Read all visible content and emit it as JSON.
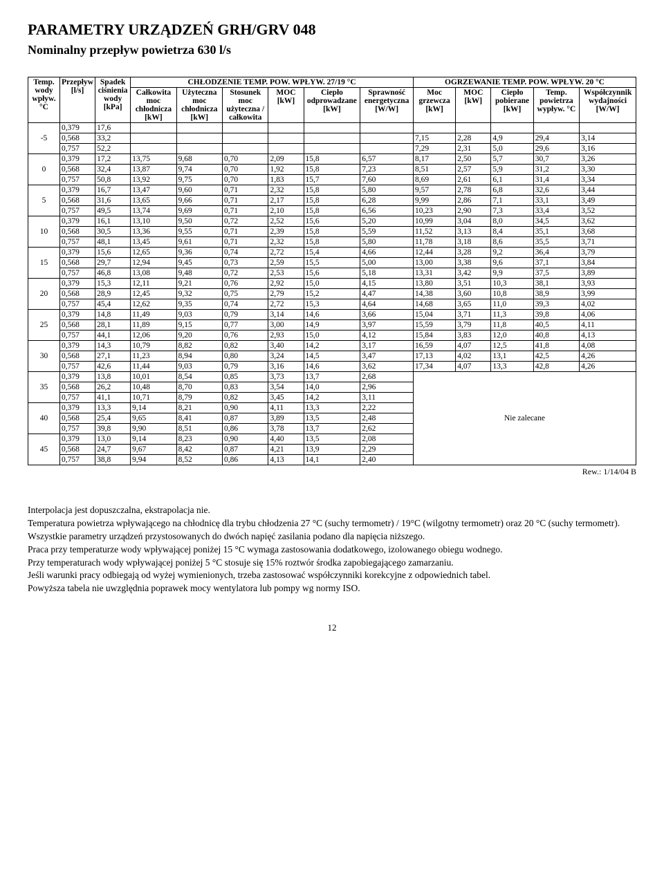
{
  "title": "PARAMETRY URZĄDZEŃ GRH/GRV 048",
  "subtitle": "Nominalny przepływ powietrza 630 l/s",
  "header": {
    "col_temp": "Temp. wody wpływ. °C",
    "col_flow": "Przepływ [l/s]",
    "col_drop": "Spadek ciśnienia wody [kPa]",
    "group_cool": "CHŁODZENIE TEMP. POW. WPŁYW. 27/19 °C",
    "group_heat": "OGRZEWANIE TEMP. POW. WPŁYW. 20 °C",
    "c1": "Całkowita moc chłodnicza [kW]",
    "c2": "Użyteczna moc chłodnicza [kW]",
    "c3": "Stosunek moc użyteczna / całkowita",
    "c4": "MOC [kW]",
    "c5": "Ciepło odprowadzane [kW]",
    "c6": "Sprawność energetyczna [W/W]",
    "c7": "Moc grzewcza [kW]",
    "c8": "MOC [kW]",
    "c9": "Ciepło pobierane [kW]",
    "c10": "Temp. powietrza wypływ. °C",
    "c11": "Współczynnik wydajności [W/W]"
  },
  "nie_zalecane": "Nie zalecane",
  "rows": [
    {
      "g": "-5",
      "f": "0,379",
      "d": "17,6",
      "v": [
        "",
        "",
        "",
        "",
        "",
        "",
        "",
        "",
        "",
        "",
        ""
      ]
    },
    {
      "g": "",
      "f": "0,568",
      "d": "33,2",
      "v": [
        "",
        "",
        "",
        "",
        "",
        "",
        "7,15",
        "2,28",
        "4,9",
        "29,4",
        "3,14"
      ]
    },
    {
      "g": "",
      "f": "0,757",
      "d": "52,2",
      "v": [
        "",
        "",
        "",
        "",
        "",
        "",
        "7,29",
        "2,31",
        "5,0",
        "29,6",
        "3,16"
      ]
    },
    {
      "g": "0",
      "f": "0,379",
      "d": "17,2",
      "v": [
        "13,75",
        "9,68",
        "0,70",
        "2,09",
        "15,8",
        "6,57",
        "8,17",
        "2,50",
        "5,7",
        "30,7",
        "3,26"
      ]
    },
    {
      "g": "",
      "f": "0,568",
      "d": "32,4",
      "v": [
        "13,87",
        "9,74",
        "0,70",
        "1,92",
        "15,8",
        "7,23",
        "8,51",
        "2,57",
        "5,9",
        "31,2",
        "3,30"
      ]
    },
    {
      "g": "",
      "f": "0,757",
      "d": "50,8",
      "v": [
        "13,92",
        "9,75",
        "0,70",
        "1,83",
        "15,7",
        "7,60",
        "8,69",
        "2,61",
        "6,1",
        "31,4",
        "3,34"
      ]
    },
    {
      "g": "5",
      "f": "0,379",
      "d": "16,7",
      "v": [
        "13,47",
        "9,60",
        "0,71",
        "2,32",
        "15,8",
        "5,80",
        "9,57",
        "2,78",
        "6,8",
        "32,6",
        "3,44"
      ]
    },
    {
      "g": "",
      "f": "0,568",
      "d": "31,6",
      "v": [
        "13,65",
        "9,66",
        "0,71",
        "2,17",
        "15,8",
        "6,28",
        "9,99",
        "2,86",
        "7,1",
        "33,1",
        "3,49"
      ]
    },
    {
      "g": "",
      "f": "0,757",
      "d": "49,5",
      "v": [
        "13,74",
        "9,69",
        "0,71",
        "2,10",
        "15,8",
        "6,56",
        "10,23",
        "2,90",
        "7,3",
        "33,4",
        "3,52"
      ]
    },
    {
      "g": "10",
      "f": "0,379",
      "d": "16,1",
      "v": [
        "13,10",
        "9,50",
        "0,72",
        "2,52",
        "15,6",
        "5,20",
        "10,99",
        "3,04",
        "8,0",
        "34,5",
        "3,62"
      ]
    },
    {
      "g": "",
      "f": "0,568",
      "d": "30,5",
      "v": [
        "13,36",
        "9,55",
        "0,71",
        "2,39",
        "15,8",
        "5,59",
        "11,52",
        "3,13",
        "8,4",
        "35,1",
        "3,68"
      ]
    },
    {
      "g": "",
      "f": "0,757",
      "d": "48,1",
      "v": [
        "13,45",
        "9,61",
        "0,71",
        "2,32",
        "15,8",
        "5,80",
        "11,78",
        "3,18",
        "8,6",
        "35,5",
        "3,71"
      ]
    },
    {
      "g": "15",
      "f": "0,379",
      "d": "15,6",
      "v": [
        "12,65",
        "9,36",
        "0,74",
        "2,72",
        "15,4",
        "4,66",
        "12,44",
        "3,28",
        "9,2",
        "36,4",
        "3,79"
      ]
    },
    {
      "g": "",
      "f": "0,568",
      "d": "29,7",
      "v": [
        "12,94",
        "9,45",
        "0,73",
        "2,59",
        "15,5",
        "5,00",
        "13,00",
        "3,38",
        "9,6",
        "37,1",
        "3,84"
      ]
    },
    {
      "g": "",
      "f": "0,757",
      "d": "46,8",
      "v": [
        "13,08",
        "9,48",
        "0,72",
        "2,53",
        "15,6",
        "5,18",
        "13,31",
        "3,42",
        "9,9",
        "37,5",
        "3,89"
      ]
    },
    {
      "g": "20",
      "f": "0,379",
      "d": "15,3",
      "v": [
        "12,11",
        "9,21",
        "0,76",
        "2,92",
        "15,0",
        "4,15",
        "13,80",
        "3,51",
        "10,3",
        "38,1",
        "3,93"
      ]
    },
    {
      "g": "",
      "f": "0,568",
      "d": "28,9",
      "v": [
        "12,45",
        "9,32",
        "0,75",
        "2,79",
        "15,2",
        "4,47",
        "14,38",
        "3,60",
        "10,8",
        "38,9",
        "3,99"
      ]
    },
    {
      "g": "",
      "f": "0,757",
      "d": "45,4",
      "v": [
        "12,62",
        "9,35",
        "0,74",
        "2,72",
        "15,3",
        "4,64",
        "14,68",
        "3,65",
        "11,0",
        "39,3",
        "4,02"
      ]
    },
    {
      "g": "25",
      "f": "0,379",
      "d": "14,8",
      "v": [
        "11,49",
        "9,03",
        "0,79",
        "3,14",
        "14,6",
        "3,66",
        "15,04",
        "3,71",
        "11,3",
        "39,8",
        "4,06"
      ]
    },
    {
      "g": "",
      "f": "0,568",
      "d": "28,1",
      "v": [
        "11,89",
        "9,15",
        "0,77",
        "3,00",
        "14,9",
        "3,97",
        "15,59",
        "3,79",
        "11,8",
        "40,5",
        "4,11"
      ]
    },
    {
      "g": "",
      "f": "0,757",
      "d": "44,1",
      "v": [
        "12,06",
        "9,20",
        "0,76",
        "2,93",
        "15,0",
        "4,12",
        "15,84",
        "3,83",
        "12,0",
        "40,8",
        "4,13"
      ]
    },
    {
      "g": "30",
      "f": "0,379",
      "d": "14,3",
      "v": [
        "10,79",
        "8,82",
        "0,82",
        "3,40",
        "14,2",
        "3,17",
        "16,59",
        "4,07",
        "12,5",
        "41,8",
        "4,08"
      ]
    },
    {
      "g": "",
      "f": "0,568",
      "d": "27,1",
      "v": [
        "11,23",
        "8,94",
        "0,80",
        "3,24",
        "14,5",
        "3,47",
        "17,13",
        "4,02",
        "13,1",
        "42,5",
        "4,26"
      ]
    },
    {
      "g": "",
      "f": "0,757",
      "d": "42,6",
      "v": [
        "11,44",
        "9,03",
        "0,79",
        "3,16",
        "14,6",
        "3,62",
        "17,34",
        "4,07",
        "13,3",
        "42,8",
        "4,26"
      ]
    },
    {
      "g": "35",
      "f": "0,379",
      "d": "13,8",
      "v": [
        "10,01",
        "8,54",
        "0,85",
        "3,73",
        "13,7",
        "2,68"
      ]
    },
    {
      "g": "",
      "f": "0,568",
      "d": "26,2",
      "v": [
        "10,48",
        "8,70",
        "0,83",
        "3,54",
        "14,0",
        "2,96"
      ]
    },
    {
      "g": "",
      "f": "0,757",
      "d": "41,1",
      "v": [
        "10,71",
        "8,79",
        "0,82",
        "3,45",
        "14,2",
        "3,11"
      ]
    },
    {
      "g": "40",
      "f": "0,379",
      "d": "13,3",
      "v": [
        "9,14",
        "8,21",
        "0,90",
        "4,11",
        "13,3",
        "2,22"
      ]
    },
    {
      "g": "",
      "f": "0,568",
      "d": "25,4",
      "v": [
        "9,65",
        "8,41",
        "0,87",
        "3,89",
        "13,5",
        "2,48"
      ]
    },
    {
      "g": "",
      "f": "0,757",
      "d": "39,8",
      "v": [
        "9,90",
        "8,51",
        "0,86",
        "3,78",
        "13,7",
        "2,62"
      ]
    },
    {
      "g": "45",
      "f": "0,379",
      "d": "13,0",
      "v": [
        "9,14",
        "8,23",
        "0,90",
        "4,40",
        "13,5",
        "2,08"
      ]
    },
    {
      "g": "",
      "f": "0,568",
      "d": "24,7",
      "v": [
        "9,67",
        "8,42",
        "0,87",
        "4,21",
        "13,9",
        "2,29"
      ]
    },
    {
      "g": "",
      "f": "0,757",
      "d": "38,8",
      "v": [
        "9,94",
        "8,52",
        "0,86",
        "4,13",
        "14,1",
        "2,40"
      ]
    }
  ],
  "revision": "Rew.: 1/14/04 B",
  "notes": [
    "Interpolacja jest dopuszczalna, ekstrapolacja nie.",
    "Temperatura powietrza wpływającego na chłodnicę dla trybu chłodzenia 27 °C (suchy termometr) / 19°C (wilgotny termometr) oraz 20 °C (suchy termometr).",
    "Wszystkie parametry urządzeń przystosowanych do dwóch napięć zasilania podano dla napięcia niższego.",
    "Praca przy temperaturze wody wpływającej poniżej 15 °C wymaga zastosowania dodatkowego, izolowanego obiegu wodnego.",
    "Przy temperaturach wody wpływającej poniżej 5 °C stosuje się 15% roztwór środka zapobiegającego zamarzaniu.",
    "Jeśli warunki pracy odbiegają od wyżej wymienionych, trzeba zastosować współczynniki korekcyjne z odpowiednich tabel.",
    "Powyższa tabela nie uwzględnia poprawek mocy wentylatora lub pompy wg normy ISO."
  ],
  "page_number": "12"
}
